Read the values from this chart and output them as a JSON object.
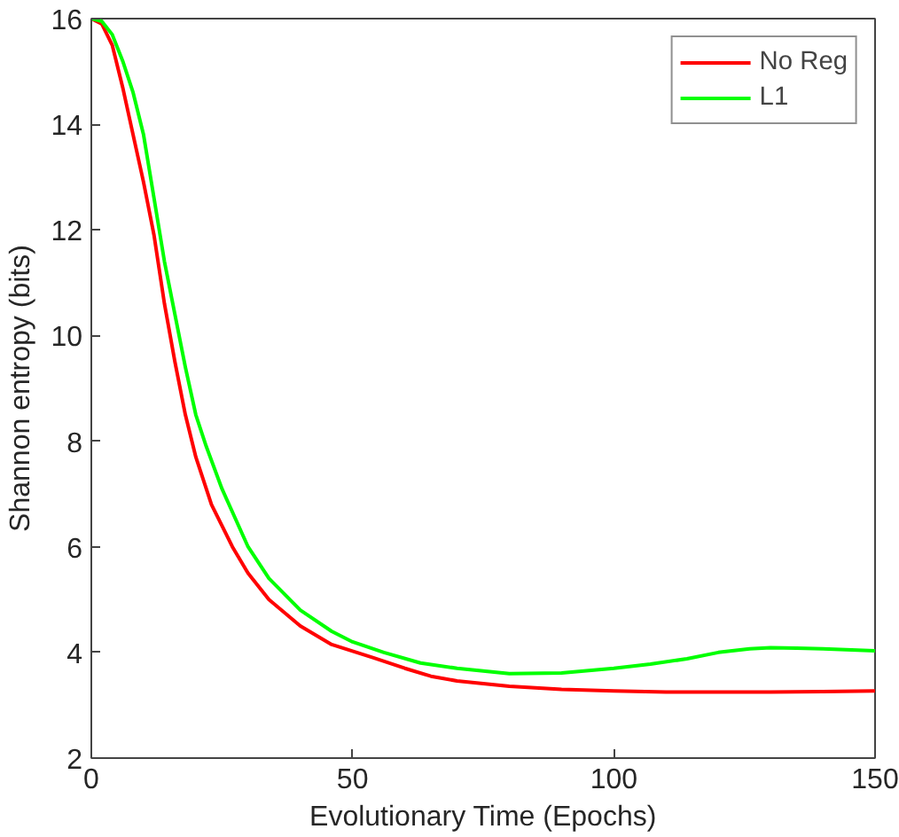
{
  "chart_data": {
    "type": "line",
    "xlabel": "Evolutionary Time (Epochs)",
    "ylabel": "Shannon entropy (bits)",
    "xlim": [
      0,
      150
    ],
    "xticks": [
      0,
      50,
      100,
      150
    ],
    "ylim": [
      2,
      16
    ],
    "yticks": [
      2,
      4,
      6,
      8,
      10,
      12,
      14,
      16
    ],
    "grid": false,
    "legend": "top right",
    "line_style": "solid",
    "series": [
      {
        "name": "No Reg",
        "color": "#ff0000",
        "x": [
          0,
          2,
          4,
          6,
          8,
          10,
          12,
          14,
          16,
          18,
          20,
          23,
          27,
          30,
          34,
          40,
          46,
          54,
          60,
          65,
          70,
          80,
          90,
          100,
          110,
          120,
          130,
          140,
          150
        ],
        "values": [
          16,
          15.9,
          15.5,
          14.7,
          13.8,
          12.9,
          11.9,
          10.6,
          9.5,
          8.5,
          7.7,
          6.8,
          6.0,
          5.5,
          5.0,
          4.5,
          4.15,
          3.9,
          3.7,
          3.55,
          3.46,
          3.36,
          3.3,
          3.27,
          3.25,
          3.25,
          3.25,
          3.26,
          3.27
        ]
      },
      {
        "name": "L1",
        "color": "#00ff00",
        "x": [
          0,
          2,
          4,
          6,
          8,
          10,
          12,
          14,
          16,
          18,
          20,
          22,
          25,
          30,
          34,
          40,
          46,
          50,
          56,
          63,
          70,
          80,
          90,
          100,
          107,
          114,
          120,
          126,
          130,
          135,
          140,
          150
        ],
        "values": [
          16,
          15.95,
          15.7,
          15.2,
          14.6,
          13.8,
          12.6,
          11.4,
          10.4,
          9.4,
          8.5,
          7.9,
          7.1,
          6.0,
          5.4,
          4.8,
          4.4,
          4.2,
          4.0,
          3.8,
          3.7,
          3.6,
          3.61,
          3.7,
          3.78,
          3.88,
          4.0,
          4.07,
          4.09,
          4.08,
          4.07,
          4.03
        ]
      }
    ]
  }
}
